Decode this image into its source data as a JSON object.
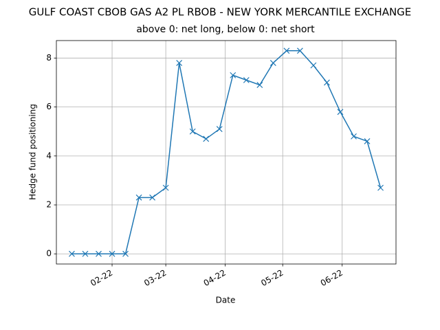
{
  "chart_data": {
    "type": "line",
    "title": "GULF COAST CBOB GAS A2 PL RBOB - NEW YORK MERCANTILE EXCHANGE",
    "subtitle": "above 0: net long, below 0: net short",
    "x_label": "Date",
    "y_label": "Hedge fund positioning",
    "x": [
      0,
      1,
      2,
      3,
      4,
      5,
      6,
      7,
      8,
      9,
      10,
      11,
      12,
      13,
      14,
      15,
      16,
      17,
      18,
      19,
      20,
      21,
      22,
      23
    ],
    "values": [
      0,
      0,
      0,
      0,
      0,
      2.3,
      2.3,
      2.7,
      7.8,
      5.0,
      4.7,
      5.1,
      7.3,
      7.1,
      6.9,
      7.8,
      8.3,
      8.3,
      7.7,
      7.0,
      5.8,
      4.8,
      4.6,
      2.7
    ],
    "color": "#1f77b4",
    "marker": "x",
    "xlim": [
      -1.15,
      24.15
    ],
    "xticks": [
      {
        "value": 3,
        "label": "02-22"
      },
      {
        "value": 7,
        "label": "03-22"
      },
      {
        "value": 11.43,
        "label": "04-22"
      },
      {
        "value": 15.71,
        "label": "05-22"
      },
      {
        "value": 20.14,
        "label": "06-22"
      }
    ],
    "ylim": [
      -0.415,
      8.715
    ],
    "yticks": [
      0,
      2,
      4,
      6,
      8
    ],
    "grid": true
  }
}
